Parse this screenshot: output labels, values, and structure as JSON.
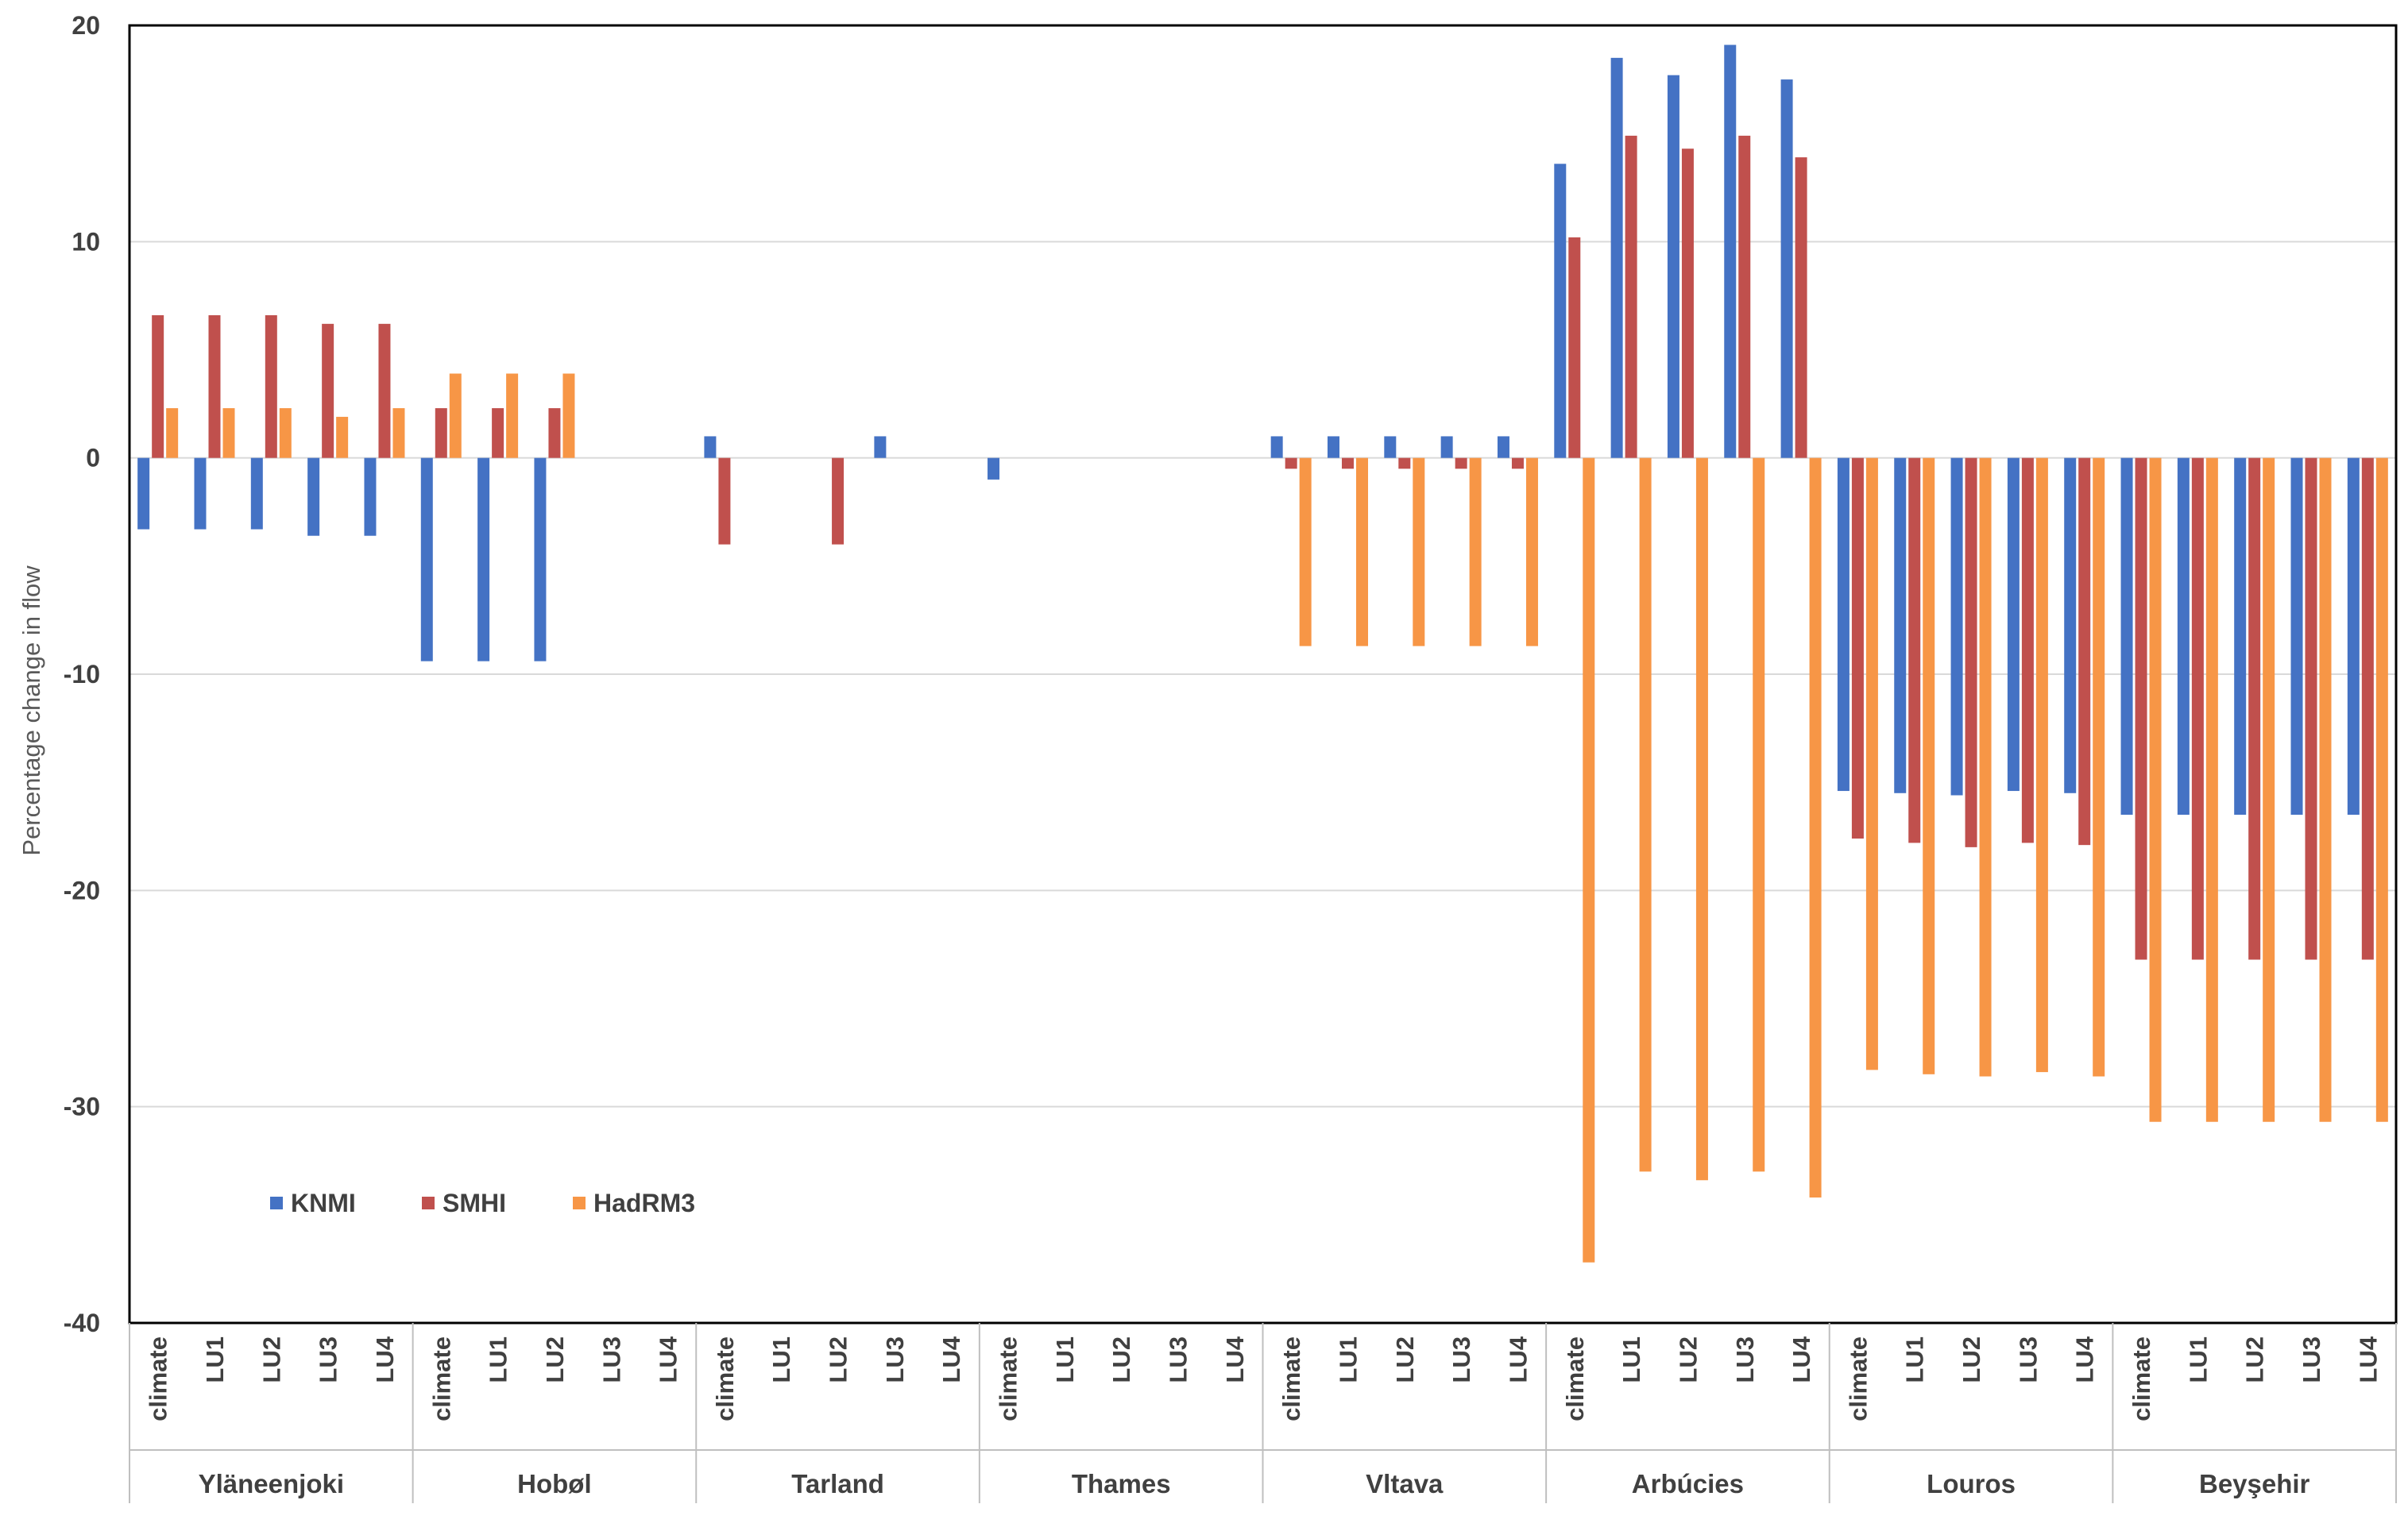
{
  "chart_data": {
    "type": "bar",
    "title": "",
    "xlabel": "",
    "ylabel": "Percentage change in flow",
    "ylim": [
      -40,
      20
    ],
    "yticks": [
      20,
      10,
      0,
      -10,
      -20,
      -30,
      -40
    ],
    "ytick_labels": [
      "20",
      "10",
      "0",
      "-10",
      "-20",
      "-30",
      "-40"
    ],
    "grid": true,
    "legend_position": "bottom-left",
    "groups": [
      "Yläneenjoki",
      "Hobøl",
      "Tarland",
      "Thames",
      "Vltava",
      "Arbúcies",
      "Louros",
      "Beyşehir"
    ],
    "subcategories": [
      "climate",
      "LU1",
      "LU2",
      "LU3",
      "LU4"
    ],
    "categories": [
      "Yläneenjoki climate",
      "Yläneenjoki LU1",
      "Yläneenjoki LU2",
      "Yläneenjoki LU3",
      "Yläneenjoki LU4",
      "Hobøl climate",
      "Hobøl LU1",
      "Hobøl LU2",
      "Hobøl LU3",
      "Hobøl LU4",
      "Tarland climate",
      "Tarland LU1",
      "Tarland LU2",
      "Tarland LU3",
      "Tarland LU4",
      "Thames climate",
      "Thames LU1",
      "Thames LU2",
      "Thames LU3",
      "Thames LU4",
      "Vltava climate",
      "Vltava LU1",
      "Vltava LU2",
      "Vltava LU3",
      "Vltava LU4",
      "Arbúcies climate",
      "Arbúcies LU1",
      "Arbúcies LU2",
      "Arbúcies LU3",
      "Arbúcies LU4",
      "Louros climate",
      "Louros LU1",
      "Louros LU2",
      "Louros LU3",
      "Louros LU4",
      "Beyşehir climate",
      "Beyşehir LU1",
      "Beyşehir LU2",
      "Beyşehir LU3",
      "Beyşehir LU4"
    ],
    "series": [
      {
        "name": "KNMI",
        "color": "#4472C4",
        "values": [
          -3.3,
          -3.3,
          -3.3,
          -3.6,
          -3.6,
          -9.4,
          -9.4,
          -9.4,
          0,
          0,
          1.0,
          0,
          0,
          1.0,
          0,
          -1.0,
          0,
          0,
          0,
          0,
          1.0,
          1.0,
          1.0,
          1.0,
          1.0,
          13.6,
          18.5,
          17.7,
          19.1,
          17.5,
          -15.4,
          -15.5,
          -15.6,
          -15.4,
          -15.5,
          -16.5,
          -16.5,
          -16.5,
          -16.5,
          -16.5
        ]
      },
      {
        "name": "SMHI",
        "color": "#C0504D",
        "values": [
          6.6,
          6.6,
          6.6,
          6.2,
          6.2,
          2.3,
          2.3,
          2.3,
          0,
          0,
          -4.0,
          0,
          -4.0,
          0,
          0,
          0,
          0,
          0,
          0,
          0,
          -0.5,
          -0.5,
          -0.5,
          -0.5,
          -0.5,
          10.2,
          14.9,
          14.3,
          14.9,
          13.9,
          -17.6,
          -17.8,
          -18.0,
          -17.8,
          -17.9,
          -23.2,
          -23.2,
          -23.2,
          -23.2,
          -23.2
        ]
      },
      {
        "name": "HadRM3",
        "color": "#F79646",
        "values": [
          2.3,
          2.3,
          2.3,
          1.9,
          2.3,
          3.9,
          3.9,
          3.9,
          0,
          0,
          0,
          0,
          0,
          0,
          0,
          0,
          0,
          0,
          0,
          0,
          -8.7,
          -8.7,
          -8.7,
          -8.7,
          -8.7,
          -37.2,
          -33.0,
          -33.4,
          -33.0,
          -34.2,
          -28.3,
          -28.5,
          -28.6,
          -28.4,
          -28.6,
          -30.7,
          -30.7,
          -30.7,
          -30.7,
          -30.7
        ]
      }
    ]
  },
  "legend": {
    "items": [
      {
        "label": "KNMI",
        "color": "#4472C4"
      },
      {
        "label": "SMHI",
        "color": "#C0504D"
      },
      {
        "label": "HadRM3",
        "color": "#F79646"
      }
    ]
  },
  "colors": {
    "grid": "#D9D9D9",
    "frame": "#000000",
    "separator": "#BFBFBF",
    "text": "#404040"
  }
}
